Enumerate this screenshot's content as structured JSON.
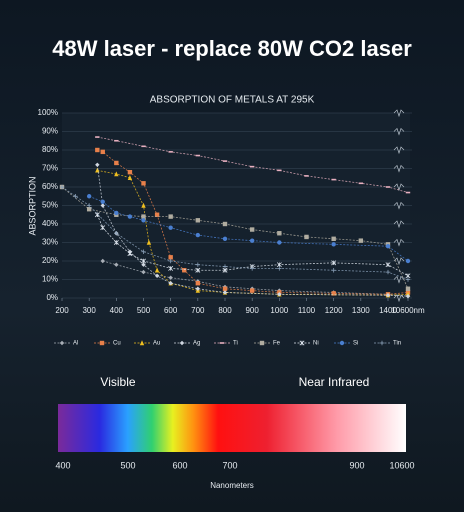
{
  "headline": "48W laser - replace 80W CO2 laser",
  "chart_data": {
    "type": "line",
    "title": "ABSORPTION OF METALS AT 295K",
    "y_label": "ABSORPTION",
    "xlim": [
      200,
      10600
    ],
    "ylim": [
      0,
      100
    ],
    "grid": true,
    "legend": "bottom",
    "xticks": [
      200,
      300,
      400,
      500,
      600,
      700,
      800,
      900,
      1000,
      1100,
      1200,
      1300,
      1400,
      {
        "value": 10600,
        "label": "10600nm"
      }
    ],
    "yticks": [
      {
        "value": 0,
        "label": "0%"
      },
      {
        "value": 10,
        "label": "10%"
      },
      {
        "value": 20,
        "label": "20%"
      },
      {
        "value": 30,
        "label": "30%"
      },
      {
        "value": 40,
        "label": "40%"
      },
      {
        "value": 50,
        "label": "50%"
      },
      {
        "value": 60,
        "label": "60%"
      },
      {
        "value": 70,
        "label": "70%"
      },
      {
        "value": 80,
        "label": "80%"
      },
      {
        "value": 90,
        "label": "90%"
      },
      {
        "value": 100,
        "label": "100%"
      }
    ],
    "series": [
      {
        "name": "Al",
        "color": "#a8aeb6",
        "marker": "diamond",
        "x": [
          350,
          400,
          500,
          600,
          700,
          800,
          900,
          1000,
          1200,
          1400,
          10600
        ],
        "values": [
          20,
          18,
          14,
          11,
          9,
          6,
          5,
          4,
          3,
          2,
          1
        ]
      },
      {
        "name": "Cu",
        "color": "#e8804a",
        "marker": "square",
        "x": [
          330,
          350,
          400,
          450,
          500,
          550,
          600,
          650,
          700,
          800,
          900,
          1000,
          1200,
          1400,
          10600
        ],
        "values": [
          80,
          79,
          73,
          68,
          62,
          45,
          22,
          15,
          8,
          5,
          4,
          3,
          2.5,
          2,
          3
        ]
      },
      {
        "name": "Au",
        "color": "#f0c020",
        "marker": "triangle",
        "x": [
          330,
          400,
          450,
          500,
          520,
          550,
          600,
          700,
          800,
          1000,
          1400,
          10600
        ],
        "values": [
          69,
          67,
          65,
          50,
          30,
          15,
          8,
          4,
          3,
          2,
          1.5,
          2
        ]
      },
      {
        "name": "Ag",
        "color": "#cfd6e0",
        "marker": "diamond",
        "x": [
          330,
          350,
          400,
          450,
          500,
          550,
          600,
          700,
          800,
          1000,
          1400,
          10600
        ],
        "values": [
          72,
          50,
          35,
          25,
          18,
          12,
          8,
          5,
          3,
          2,
          1.5,
          1
        ]
      },
      {
        "name": "Ti",
        "color": "#e8b0c0",
        "marker": "dash",
        "x": [
          330,
          400,
          500,
          600,
          700,
          800,
          900,
          1000,
          1100,
          1200,
          1300,
          1400,
          10600
        ],
        "values": [
          87,
          85,
          82,
          79,
          77,
          74,
          71,
          69,
          66,
          64,
          62,
          60,
          57
        ]
      },
      {
        "name": "Fe",
        "color": "#b0aca0",
        "marker": "square",
        "x": [
          200,
          300,
          400,
          500,
          600,
          700,
          800,
          900,
          1000,
          1100,
          1200,
          1300,
          1400,
          10600
        ],
        "values": [
          60,
          48,
          45,
          44,
          44,
          42,
          40,
          37,
          35,
          33,
          32,
          31,
          29,
          5
        ]
      },
      {
        "name": "Ni",
        "color": "#dfe6ef",
        "marker": "star",
        "x": [
          330,
          350,
          400,
          450,
          500,
          600,
          700,
          800,
          900,
          1000,
          1200,
          1400,
          10600
        ],
        "values": [
          45,
          38,
          30,
          24,
          20,
          16,
          15,
          15,
          17,
          18,
          19,
          18,
          12
        ]
      },
      {
        "name": "Si",
        "color": "#4a7fd0",
        "marker": "circle",
        "x": [
          300,
          350,
          400,
          450,
          500,
          600,
          700,
          800,
          900,
          1000,
          1200,
          1400,
          10600
        ],
        "values": [
          55,
          52,
          46,
          44,
          42,
          38,
          34,
          32,
          31,
          30,
          29,
          28,
          20
        ]
      },
      {
        "name": "Tin",
        "color": "#8aa0b8",
        "marker": "plus",
        "x": [
          200,
          250,
          300,
          400,
          500,
          600,
          700,
          800,
          900,
          1000,
          1200,
          1400,
          10600
        ],
        "values": [
          60,
          55,
          50,
          35,
          25,
          20,
          18,
          17,
          16,
          16,
          15,
          14,
          10
        ]
      }
    ]
  },
  "spectrum": {
    "left_label": "Visible",
    "right_label": "Near Infrared",
    "ticks": [
      "400",
      "500",
      "600",
      "700",
      "900",
      "10600"
    ],
    "axis_label": "Nanometers"
  }
}
